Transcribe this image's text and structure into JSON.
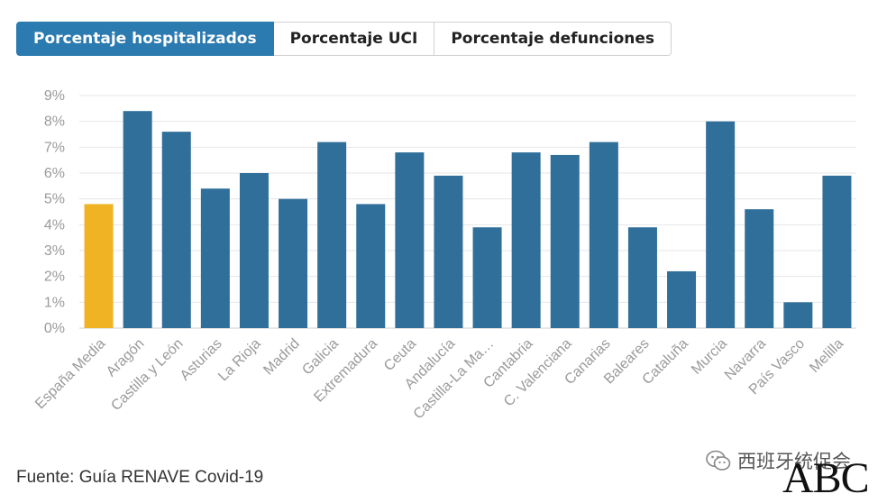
{
  "tabs": [
    {
      "label": "Porcentaje hospitalizados",
      "active": true
    },
    {
      "label": "Porcentaje UCI",
      "active": false
    },
    {
      "label": "Porcentaje defunciones",
      "active": false
    }
  ],
  "colors": {
    "accent": "#2b7ab0",
    "bar": "#2f6f9a",
    "highlight": "#f0b323"
  },
  "chart_data": {
    "type": "bar",
    "categories": [
      "España Media",
      "Aragón",
      "Castilla y León",
      "Asturias",
      "La Rioja",
      "Madrid",
      "Galicia",
      "Extremadura",
      "Ceuta",
      "Andalucía",
      "Castilla-La Ma…",
      "Cantabria",
      "C. Valenciana",
      "Canarias",
      "Baleares",
      "Cataluña",
      "Murcia",
      "Navarra",
      "País Vasco",
      "Melilla"
    ],
    "values": [
      4.8,
      8.4,
      7.6,
      5.4,
      6.0,
      5.0,
      7.2,
      4.8,
      6.8,
      5.9,
      3.9,
      6.8,
      6.7,
      7.2,
      3.9,
      2.2,
      8.0,
      4.6,
      1.0,
      5.9
    ],
    "highlight_index": 0,
    "y_ticks": [
      "0%",
      "1%",
      "2%",
      "3%",
      "4%",
      "5%",
      "6%",
      "7%",
      "8%",
      "9%"
    ],
    "ylim": [
      0,
      9
    ],
    "grid": true
  },
  "footer": {
    "source": "Fuente: Guía RENAVE Covid-19"
  },
  "watermark": {
    "text": "西班牙统促会",
    "logo": "ABC"
  }
}
